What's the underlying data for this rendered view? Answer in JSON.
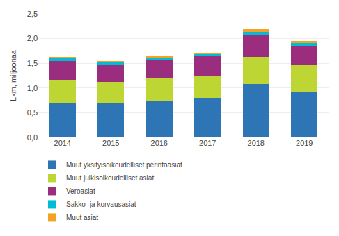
{
  "chart_data": {
    "type": "bar",
    "stacked": true,
    "categories": [
      "2014",
      "2015",
      "2016",
      "2017",
      "2018",
      "2019"
    ],
    "series": [
      {
        "name": "Muut yksityisoikeudelliset perintäasiat",
        "color": "#2e75b6",
        "values": [
          0.7,
          0.7,
          0.74,
          0.8,
          1.08,
          0.93
        ]
      },
      {
        "name": "Muut julkisoikeudelliset asiat",
        "color": "#bed634",
        "values": [
          0.47,
          0.43,
          0.46,
          0.44,
          0.55,
          0.53
        ]
      },
      {
        "name": "Veroasiat",
        "color": "#9b2d7e",
        "values": [
          0.37,
          0.35,
          0.37,
          0.4,
          0.44,
          0.4
        ]
      },
      {
        "name": "Sakko- ja korvausasiat",
        "color": "#00bcd4",
        "values": [
          0.06,
          0.05,
          0.05,
          0.05,
          0.07,
          0.05
        ]
      },
      {
        "name": "Muut asiat",
        "color": "#f4a124",
        "values": [
          0.03,
          0.02,
          0.02,
          0.03,
          0.05,
          0.04
        ]
      }
    ],
    "ylabel": "Lkm, miljoonaa",
    "ylim": [
      0.0,
      2.5
    ],
    "yticks": [
      {
        "value": 0.0,
        "label": "0,0"
      },
      {
        "value": 0.5,
        "label": "0,5"
      },
      {
        "value": 1.0,
        "label": "1,0"
      },
      {
        "value": 1.5,
        "label": "1,5"
      },
      {
        "value": 2.0,
        "label": "2,0"
      },
      {
        "value": 2.5,
        "label": "2,5"
      }
    ],
    "grid": true,
    "legend": "bottom"
  }
}
